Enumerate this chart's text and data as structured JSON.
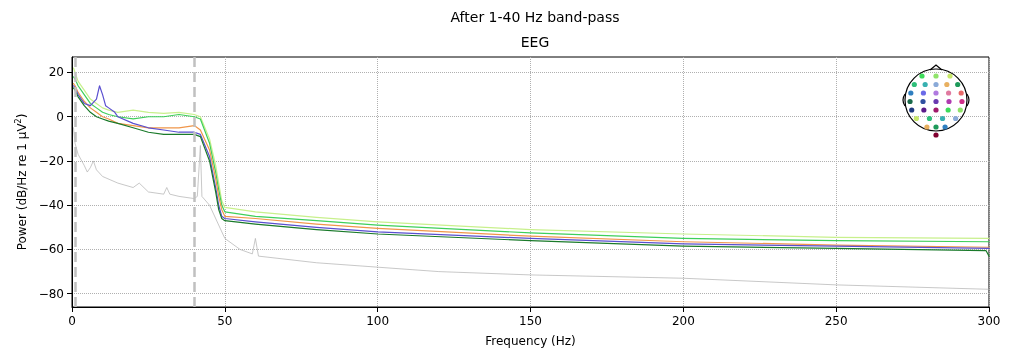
{
  "chart_data": {
    "type": "line",
    "title": "After 1-40 Hz band-pass",
    "subtitle": "EEG",
    "xlabel": "Frequency (Hz)",
    "ylabel": "Power (dB/Hz re 1 µV$^{2}$)",
    "xlim": [
      0,
      300
    ],
    "ylim": [
      -86,
      27
    ],
    "xticks": [
      0,
      50,
      100,
      150,
      200,
      250,
      300
    ],
    "yticks": [
      -80,
      -60,
      -40,
      -20,
      0,
      20
    ],
    "grid": true,
    "marker": "none",
    "line_style": "solid",
    "ref_lines": [
      {
        "axis": "x",
        "value": 1,
        "color": "#c0c0c0",
        "line_style": "dashed"
      },
      {
        "axis": "x",
        "value": 40,
        "color": "#c0c0c0",
        "line_style": "dashed"
      }
    ],
    "series": [
      {
        "color": "#b0b0b0",
        "x": [
          0.5,
          1,
          2,
          4,
          5,
          6,
          7,
          8,
          10,
          15,
          20,
          22,
          25,
          30,
          31,
          32,
          35,
          40,
          41,
          42,
          42.5,
          45,
          50,
          55,
          59,
          60,
          61,
          80,
          100,
          120,
          150,
          200,
          250,
          300
        ],
        "values": [
          -5,
          -12,
          -17,
          -22,
          -25,
          -23,
          -20,
          -24,
          -27,
          -30,
          -32,
          -30,
          -34,
          -35,
          -32,
          -35,
          -36,
          -37,
          -36,
          -13,
          -36,
          -40,
          -55,
          -60,
          -62,
          -55,
          -63,
          -66,
          -68,
          -70,
          -71.5,
          -73,
          -76,
          -78
        ]
      },
      {
        "color": "#c8f08c",
        "x": [
          0.5,
          1,
          2,
          4,
          6,
          8,
          10,
          12,
          15,
          20,
          25,
          30,
          35,
          40,
          42,
          45,
          47,
          48,
          49,
          50,
          60,
          80,
          100,
          150,
          200,
          250,
          300
        ],
        "values": [
          22,
          20,
          16,
          12,
          8,
          6,
          4,
          3,
          2,
          3,
          2,
          1.5,
          2,
          1,
          0,
          -10,
          -22,
          -30,
          -38,
          -41,
          -43,
          -45.5,
          -47.5,
          -51,
          -53,
          -54.5,
          -55
        ]
      },
      {
        "color": "#3ecf5a",
        "x": [
          0.5,
          1,
          2,
          4,
          6,
          8,
          10,
          12,
          15,
          20,
          25,
          30,
          35,
          40,
          42,
          45,
          47,
          48,
          49,
          50,
          60,
          80,
          100,
          150,
          200,
          250,
          300
        ],
        "values": [
          18,
          17,
          14,
          10,
          6,
          4,
          2,
          1,
          0,
          -1,
          0,
          0,
          1,
          0,
          -1,
          -12,
          -25,
          -33,
          -40,
          -43,
          -45,
          -47,
          -49,
          -52.5,
          -55,
          -56,
          -56.5
        ]
      },
      {
        "color": "#f0964a",
        "x": [
          0.5,
          1,
          2,
          4,
          6,
          8,
          10,
          12,
          15,
          20,
          25,
          30,
          35,
          40,
          42,
          45,
          47,
          48,
          49,
          50,
          60,
          80,
          100,
          150,
          200,
          250,
          300
        ],
        "values": [
          15,
          14,
          11,
          7,
          4,
          2,
          0,
          -1,
          -3,
          -4,
          -5,
          -5,
          -5,
          -4,
          -6,
          -15,
          -28,
          -36,
          -42,
          -45,
          -46,
          -48.5,
          -50.5,
          -54,
          -56.5,
          -58,
          -59
        ]
      },
      {
        "color": "#5a4fd0",
        "x": [
          0.5,
          1,
          2,
          4,
          6,
          8,
          9,
          10,
          11,
          12,
          14,
          15,
          20,
          25,
          30,
          35,
          40,
          42,
          45,
          47,
          48,
          49,
          50,
          60,
          80,
          100,
          150,
          200,
          250,
          300
        ],
        "values": [
          14,
          13,
          10,
          6,
          5,
          8,
          14,
          10,
          5,
          4,
          2,
          0,
          -3,
          -5,
          -6,
          -7,
          -7,
          -8,
          -18,
          -32,
          -40,
          -45,
          -46,
          -47.5,
          -50,
          -52,
          -55,
          -57.5,
          -58.5,
          -59.5
        ]
      },
      {
        "color": "#1a7a2a",
        "x": [
          0.5,
          1,
          2,
          4,
          6,
          8,
          10,
          12,
          15,
          20,
          25,
          30,
          35,
          40,
          42,
          45,
          47,
          48,
          49,
          50,
          60,
          80,
          100,
          150,
          200,
          250,
          299,
          300
        ],
        "values": [
          13,
          12,
          9,
          5,
          2,
          0,
          -1,
          -2,
          -3,
          -5,
          -7,
          -8,
          -8,
          -8,
          -9,
          -20,
          -34,
          -42,
          -46,
          -47,
          -48.5,
          -51,
          -53,
          -56,
          -58.5,
          -59.5,
          -60.5,
          -63
        ]
      }
    ]
  }
}
